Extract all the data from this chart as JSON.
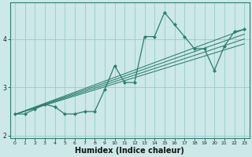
{
  "title": "",
  "xlabel": "Humidex (Indice chaleur)",
  "ylabel": "",
  "bg_color": "#cce8e8",
  "line_color": "#2d7d6e",
  "grid_color": "#99cccc",
  "x_data": [
    0,
    1,
    2,
    3,
    4,
    5,
    6,
    7,
    8,
    9,
    10,
    11,
    12,
    13,
    14,
    15,
    16,
    17,
    18,
    19,
    20,
    21,
    22,
    23
  ],
  "y_main": [
    2.45,
    2.45,
    2.55,
    2.65,
    2.6,
    2.45,
    2.45,
    2.5,
    2.5,
    2.95,
    3.45,
    3.1,
    3.1,
    4.05,
    4.05,
    4.55,
    4.3,
    4.05,
    3.8,
    3.8,
    3.35,
    3.85,
    4.15,
    4.2
  ],
  "reg_lines": [
    {
      "x0": 0.0,
      "y0": 2.44,
      "x1": 23.0,
      "y1": 4.2
    },
    {
      "x0": 0.0,
      "y0": 2.44,
      "x1": 23.0,
      "y1": 4.1
    },
    {
      "x0": 0.0,
      "y0": 2.44,
      "x1": 23.0,
      "y1": 4.0
    },
    {
      "x0": 0.0,
      "y0": 2.44,
      "x1": 23.0,
      "y1": 3.9
    }
  ],
  "ylim": [
    1.95,
    4.75
  ],
  "xlim": [
    -0.5,
    23.5
  ],
  "yticks": [
    2,
    3,
    4
  ],
  "xticks": [
    0,
    1,
    2,
    3,
    4,
    5,
    6,
    7,
    8,
    9,
    10,
    11,
    12,
    13,
    14,
    15,
    16,
    17,
    18,
    19,
    20,
    21,
    22,
    23
  ]
}
